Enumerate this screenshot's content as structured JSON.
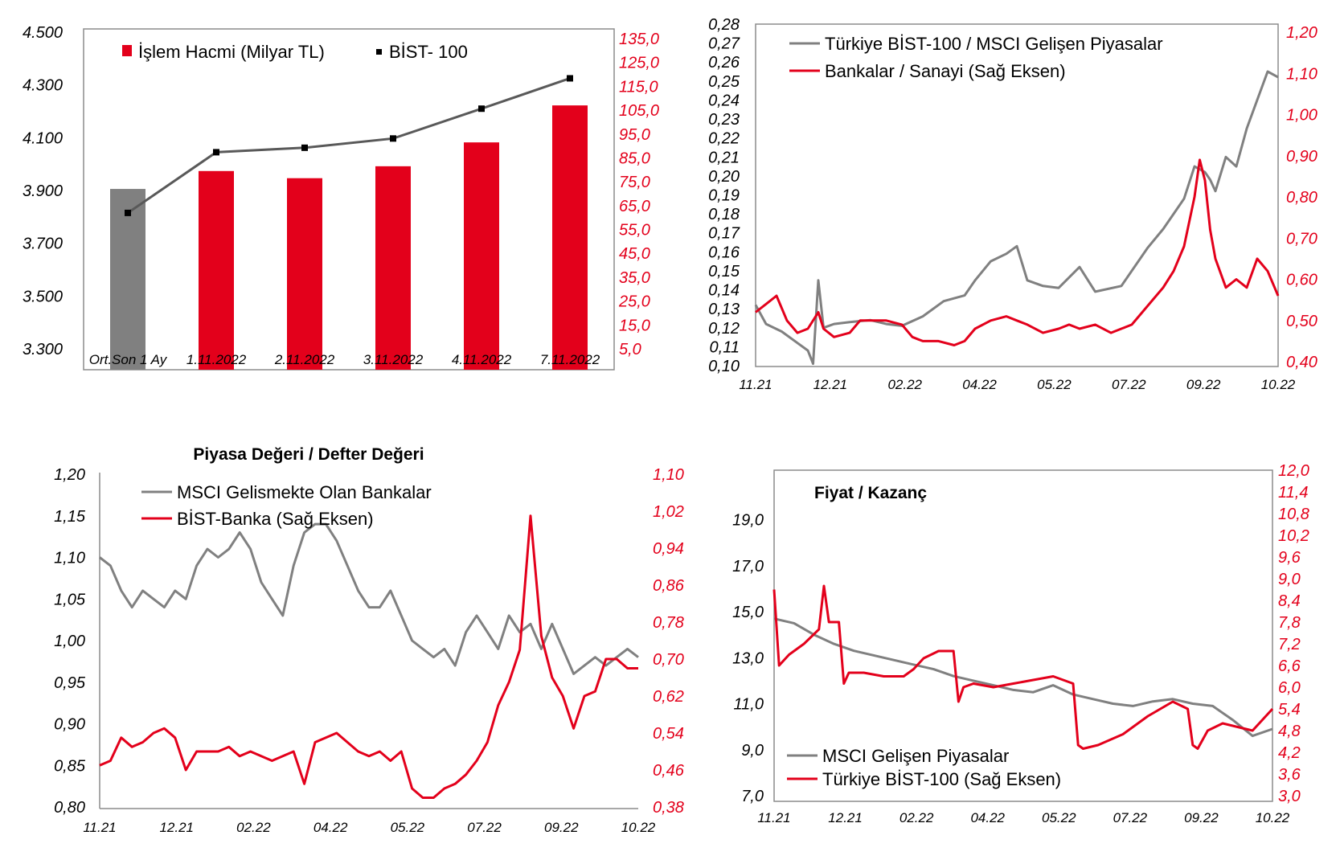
{
  "colors": {
    "red": "#e3001b",
    "gray": "#808080",
    "line_gray": "#595959",
    "black": "#000000"
  },
  "chart_data": [
    {
      "id": "c1",
      "type": "bar+line",
      "title": "",
      "categories": [
        "Ort.Son 1 Ay",
        "1.11.2022",
        "2.11.2022",
        "3.11.2022",
        "4.11.2022",
        "7.11.2022"
      ],
      "series": [
        {
          "name": "İşlem Hacmi (Milyar TL)",
          "type": "bar",
          "axis": "right",
          "values": [
            72,
            79.5,
            76.5,
            81.5,
            91.5,
            107
          ]
        },
        {
          "name": "BİST- 100",
          "type": "line",
          "axis": "left",
          "values": [
            3815,
            4045,
            4062,
            4097,
            4210,
            4325
          ]
        }
      ],
      "ylim": [
        3300,
        4500
      ],
      "yticks": [
        "4.500",
        "4.300",
        "4.100",
        "3.900",
        "3.700",
        "3.500",
        "3.300"
      ],
      "y2lim": [
        5,
        135
      ],
      "y2ticks": [
        "135,0",
        "125,0",
        "115,0",
        "105,0",
        "95,0",
        "85,0",
        "75,0",
        "65,0",
        "55,0",
        "45,0",
        "35,0",
        "25,0",
        "15,0",
        "5,0"
      ],
      "legend": "top-left",
      "grid": false
    },
    {
      "id": "c2",
      "type": "line",
      "title": "",
      "x_ticks": [
        "11.21",
        "12.21",
        "02.22",
        "04.22",
        "05.22",
        "07.22",
        "09.22",
        "10.22"
      ],
      "ylim": [
        0.1,
        0.28
      ],
      "yticks": [
        "0,28",
        "0,27",
        "0,26",
        "0,25",
        "0,24",
        "0,23",
        "0,22",
        "0,21",
        "0,20",
        "0,19",
        "0,18",
        "0,17",
        "0,16",
        "0,15",
        "0,14",
        "0,13",
        "0,12",
        "0,11",
        "0,10"
      ],
      "y2lim": [
        0.4,
        1.2
      ],
      "y2ticks": [
        "1,20",
        "1,10",
        "1,00",
        "0,90",
        "0,80",
        "0,70",
        "0,60",
        "0,50",
        "0,40"
      ],
      "series": [
        {
          "name": "Türkiye BİST-100 / MSCI Gelişen Piyasalar",
          "axis": "left",
          "x": [
            0,
            0.02,
            0.05,
            0.08,
            0.1,
            0.11,
            0.12,
            0.13,
            0.15,
            0.18,
            0.22,
            0.25,
            0.28,
            0.32,
            0.36,
            0.4,
            0.42,
            0.45,
            0.48,
            0.5,
            0.52,
            0.55,
            0.58,
            0.62,
            0.65,
            0.7,
            0.75,
            0.78,
            0.8,
            0.82,
            0.84,
            0.86,
            0.87,
            0.88,
            0.9,
            0.92,
            0.94,
            0.96,
            0.98,
            1.0
          ],
          "y": [
            0.132,
            0.122,
            0.118,
            0.112,
            0.108,
            0.101,
            0.145,
            0.12,
            0.122,
            0.123,
            0.124,
            0.122,
            0.121,
            0.126,
            0.134,
            0.137,
            0.145,
            0.155,
            0.159,
            0.163,
            0.145,
            0.142,
            0.141,
            0.152,
            0.139,
            0.142,
            0.162,
            0.172,
            0.18,
            0.188,
            0.205,
            0.202,
            0.198,
            0.192,
            0.21,
            0.205,
            0.225,
            0.24,
            0.255,
            0.252
          ]
        },
        {
          "name": "Bankalar / Sanayi (Sağ Eksen)",
          "axis": "right",
          "x": [
            0,
            0.02,
            0.04,
            0.06,
            0.08,
            0.1,
            0.12,
            0.13,
            0.15,
            0.18,
            0.2,
            0.22,
            0.25,
            0.28,
            0.3,
            0.32,
            0.35,
            0.38,
            0.4,
            0.42,
            0.45,
            0.48,
            0.5,
            0.52,
            0.55,
            0.58,
            0.6,
            0.62,
            0.65,
            0.68,
            0.7,
            0.72,
            0.74,
            0.76,
            0.78,
            0.8,
            0.82,
            0.84,
            0.85,
            0.86,
            0.87,
            0.88,
            0.9,
            0.92,
            0.94,
            0.96,
            0.98,
            1.0
          ],
          "y": [
            0.52,
            0.54,
            0.56,
            0.5,
            0.47,
            0.48,
            0.52,
            0.48,
            0.46,
            0.47,
            0.5,
            0.5,
            0.5,
            0.49,
            0.46,
            0.45,
            0.45,
            0.44,
            0.45,
            0.48,
            0.5,
            0.51,
            0.5,
            0.49,
            0.47,
            0.48,
            0.49,
            0.48,
            0.49,
            0.47,
            0.48,
            0.49,
            0.52,
            0.55,
            0.58,
            0.62,
            0.68,
            0.8,
            0.89,
            0.84,
            0.72,
            0.65,
            0.58,
            0.6,
            0.58,
            0.65,
            0.62,
            0.56
          ]
        }
      ],
      "legend": "top-left",
      "grid": false
    },
    {
      "id": "c3",
      "type": "line",
      "title": "Piyasa Değeri / Defter Değeri",
      "x_ticks": [
        "11.21",
        "12.21",
        "02.22",
        "04.22",
        "05.22",
        "07.22",
        "09.22",
        "10.22"
      ],
      "ylim": [
        0.8,
        1.2
      ],
      "yticks": [
        "1,20",
        "1,15",
        "1,10",
        "1,05",
        "1,00",
        "0,95",
        "0,90",
        "0,85",
        "0,80"
      ],
      "y2lim": [
        0.38,
        1.1
      ],
      "y2ticks": [
        "1,10",
        "1,02",
        "0,94",
        "0,86",
        "0,78",
        "0,70",
        "0,62",
        "0,54",
        "0,46",
        "0,38"
      ],
      "series": [
        {
          "name": "MSCI Gelismekte Olan Bankalar",
          "axis": "left",
          "x": [
            0,
            0.02,
            0.04,
            0.06,
            0.08,
            0.1,
            0.12,
            0.14,
            0.16,
            0.18,
            0.2,
            0.22,
            0.24,
            0.26,
            0.28,
            0.3,
            0.32,
            0.34,
            0.36,
            0.38,
            0.4,
            0.42,
            0.44,
            0.46,
            0.48,
            0.5,
            0.52,
            0.54,
            0.56,
            0.58,
            0.6,
            0.62,
            0.64,
            0.66,
            0.68,
            0.7,
            0.72,
            0.74,
            0.76,
            0.78,
            0.8,
            0.82,
            0.84,
            0.86,
            0.88,
            0.9,
            0.92,
            0.94,
            0.96,
            0.98,
            1.0
          ],
          "y": [
            1.1,
            1.09,
            1.06,
            1.04,
            1.06,
            1.05,
            1.04,
            1.06,
            1.05,
            1.09,
            1.11,
            1.1,
            1.11,
            1.13,
            1.11,
            1.07,
            1.05,
            1.03,
            1.09,
            1.13,
            1.14,
            1.14,
            1.12,
            1.09,
            1.06,
            1.04,
            1.04,
            1.06,
            1.03,
            1.0,
            0.99,
            0.98,
            0.99,
            0.97,
            1.01,
            1.03,
            1.01,
            0.99,
            1.03,
            1.01,
            1.02,
            0.99,
            1.02,
            0.99,
            0.96,
            0.97,
            0.98,
            0.97,
            0.98,
            0.99,
            0.98
          ]
        },
        {
          "name": "BİST-Banka (Sağ Eksen)",
          "axis": "right",
          "x": [
            0,
            0.02,
            0.04,
            0.06,
            0.08,
            0.1,
            0.12,
            0.14,
            0.16,
            0.18,
            0.2,
            0.22,
            0.24,
            0.26,
            0.28,
            0.3,
            0.32,
            0.34,
            0.36,
            0.38,
            0.4,
            0.42,
            0.44,
            0.46,
            0.48,
            0.5,
            0.52,
            0.54,
            0.56,
            0.58,
            0.6,
            0.62,
            0.64,
            0.66,
            0.68,
            0.7,
            0.72,
            0.74,
            0.76,
            0.78,
            0.8,
            0.82,
            0.84,
            0.86,
            0.88,
            0.9,
            0.92,
            0.94,
            0.96,
            0.98,
            1.0
          ],
          "y": [
            0.47,
            0.48,
            0.53,
            0.51,
            0.52,
            0.54,
            0.55,
            0.53,
            0.46,
            0.5,
            0.5,
            0.5,
            0.51,
            0.49,
            0.5,
            0.49,
            0.48,
            0.49,
            0.5,
            0.43,
            0.52,
            0.53,
            0.54,
            0.52,
            0.5,
            0.49,
            0.5,
            0.48,
            0.5,
            0.42,
            0.4,
            0.4,
            0.42,
            0.43,
            0.45,
            0.48,
            0.52,
            0.6,
            0.65,
            0.72,
            1.01,
            0.75,
            0.66,
            0.62,
            0.55,
            0.62,
            0.63,
            0.7,
            0.7,
            0.68,
            0.68
          ]
        }
      ],
      "legend": "top-left",
      "grid": false
    },
    {
      "id": "c4",
      "type": "line",
      "title": "Fiyat / Kazanç",
      "x_ticks": [
        "11.21",
        "12.21",
        "02.22",
        "04.22",
        "05.22",
        "07.22",
        "09.22",
        "10.22"
      ],
      "ylim": [
        7.0,
        20.0
      ],
      "yticks": [
        "19,0",
        "17,0",
        "15,0",
        "13,0",
        "11,0",
        "9,0",
        "7,0"
      ],
      "y2lim": [
        3.0,
        12.0
      ],
      "y2ticks": [
        "12,0",
        "11,4",
        "10,8",
        "10,2",
        "9,6",
        "9,0",
        "8,4",
        "7,8",
        "7,2",
        "6,6",
        "6,0",
        "5,4",
        "4,8",
        "4,2",
        "3,6",
        "3,0"
      ],
      "series": [
        {
          "name": "MSCI Gelişen Piyasalar",
          "axis": "left",
          "x": [
            0,
            0.04,
            0.08,
            0.12,
            0.16,
            0.2,
            0.24,
            0.28,
            0.32,
            0.36,
            0.4,
            0.44,
            0.48,
            0.52,
            0.56,
            0.6,
            0.64,
            0.68,
            0.72,
            0.76,
            0.8,
            0.84,
            0.88,
            0.92,
            0.96,
            1.0
          ],
          "y": [
            14.7,
            14.5,
            14.0,
            13.6,
            13.3,
            13.1,
            12.9,
            12.7,
            12.5,
            12.2,
            12.0,
            11.8,
            11.6,
            11.5,
            11.8,
            11.4,
            11.2,
            11.0,
            10.9,
            11.1,
            11.2,
            11.0,
            10.9,
            10.3,
            9.6,
            9.9
          ]
        },
        {
          "name": "Türkiye BİST-100 (Sağ Eksen)",
          "axis": "right",
          "x": [
            0,
            0.01,
            0.03,
            0.06,
            0.09,
            0.1,
            0.11,
            0.13,
            0.14,
            0.15,
            0.18,
            0.22,
            0.26,
            0.28,
            0.3,
            0.33,
            0.36,
            0.37,
            0.38,
            0.4,
            0.44,
            0.48,
            0.52,
            0.56,
            0.6,
            0.61,
            0.62,
            0.65,
            0.7,
            0.75,
            0.8,
            0.83,
            0.84,
            0.85,
            0.87,
            0.9,
            0.93,
            0.96,
            1.0
          ],
          "y": [
            8.7,
            6.6,
            6.9,
            7.2,
            7.6,
            8.8,
            7.8,
            7.8,
            6.1,
            6.4,
            6.4,
            6.3,
            6.3,
            6.5,
            6.8,
            7.0,
            7.0,
            5.6,
            6.0,
            6.1,
            6.0,
            6.1,
            6.2,
            6.3,
            6.1,
            4.4,
            4.3,
            4.4,
            4.7,
            5.2,
            5.6,
            5.4,
            4.4,
            4.3,
            4.8,
            5.0,
            4.9,
            4.8,
            5.4
          ]
        }
      ],
      "legend": "bottom-left",
      "grid": false
    }
  ]
}
